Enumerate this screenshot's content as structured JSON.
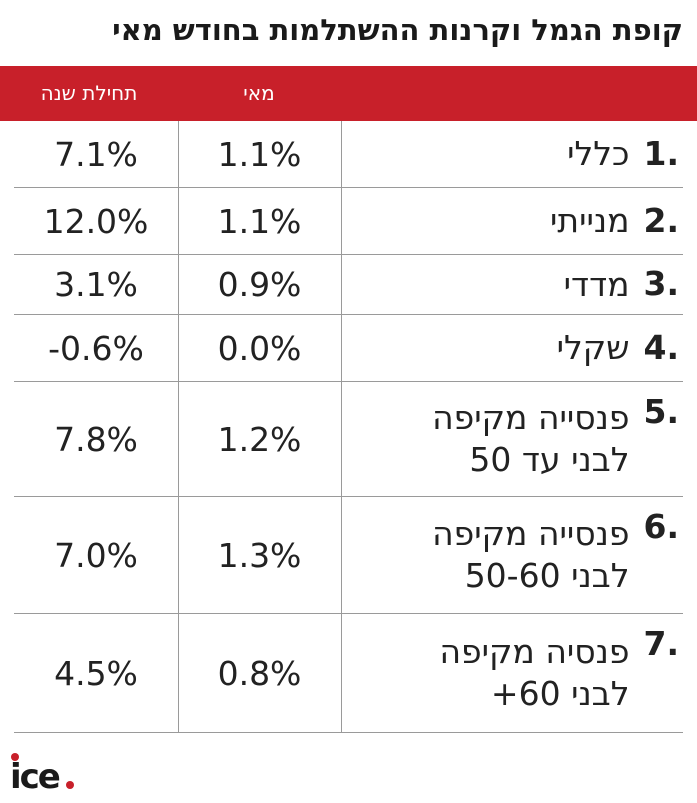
{
  "title": "קופת הגמל וקרנות ההשתלמות בחודש מאי",
  "logo": "ice.",
  "colors": {
    "header_bg": "#c8202a",
    "header_text": "#ffffff",
    "grid": "#9a9a9a",
    "text": "#222222"
  },
  "chart_data": {
    "type": "table",
    "columns": [
      "מאי",
      "תחילת שנה"
    ],
    "rows": [
      {
        "rank": "1.",
        "name": "כללי",
        "may": "1.1%",
        "ytd": "7.1%"
      },
      {
        "rank": "2.",
        "name": "מנייתי",
        "may": "1.1%",
        "ytd": "12.0%"
      },
      {
        "rank": "3.",
        "name": "מדדי",
        "may": "0.9%",
        "ytd": "3.1%"
      },
      {
        "rank": "4.",
        "name": "שקלי",
        "may": "0.0%",
        "ytd": "-0.6%"
      },
      {
        "rank": "5.",
        "name": "פנסייה מקיפה לבני עד 50",
        "may": "1.2%",
        "ytd": "7.8%"
      },
      {
        "rank": "6.",
        "name": "פנסייה מקיפה לבני 50-60",
        "may": "1.3%",
        "ytd": "7.0%"
      },
      {
        "rank": "7.",
        "name": "פנסיה מקיפה לבני 60+",
        "may": "0.8%",
        "ytd": "4.5%"
      }
    ]
  }
}
